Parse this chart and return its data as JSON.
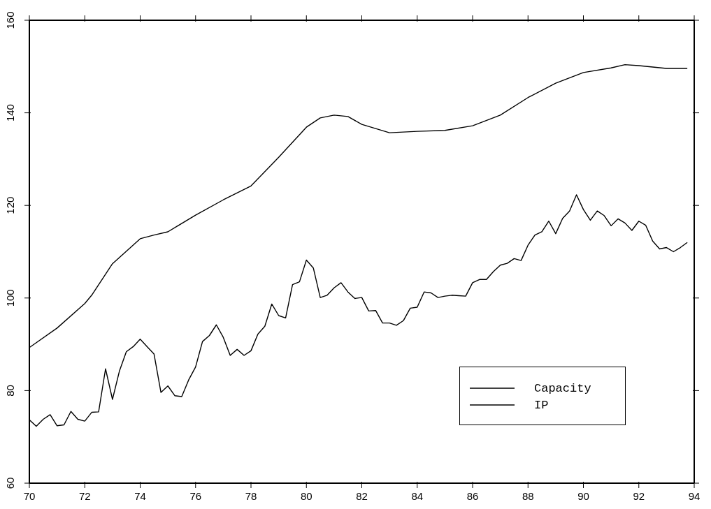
{
  "chart_data": {
    "type": "line",
    "xlim": [
      70,
      94
    ],
    "xticks": [
      70,
      72,
      74,
      76,
      78,
      80,
      82,
      84,
      86,
      88,
      90,
      92,
      94
    ],
    "ylim": [
      60,
      160
    ],
    "yticks": [
      60,
      80,
      100,
      120,
      140,
      160
    ],
    "grid": false,
    "legend": "bottom right",
    "marker": "none",
    "line_style": "solid",
    "series": [
      {
        "name": "Capacity",
        "color": "#000000",
        "x": [
          70,
          71,
          72,
          72.25,
          73,
          74,
          74.5,
          75,
          76,
          77,
          78,
          79,
          80,
          80.5,
          81,
          81.5,
          82,
          83,
          84,
          85,
          86,
          87,
          88,
          89,
          90,
          91,
          91.5,
          92,
          93,
          93.75
        ],
        "values": [
          89.3,
          93.5,
          98.8,
          100.6,
          107.4,
          112.8,
          113.6,
          114.3,
          117.9,
          121.2,
          124.2,
          130.4,
          136.9,
          138.9,
          139.5,
          139.2,
          137.5,
          135.7,
          136.0,
          136.2,
          137.2,
          139.5,
          143.3,
          146.4,
          148.7,
          149.7,
          150.4,
          150.2,
          149.6,
          149.6
        ]
      },
      {
        "name": "IP",
        "color": "#000000",
        "x": [
          70,
          70.25,
          70.5,
          70.75,
          71,
          71.25,
          71.5,
          71.75,
          72,
          72.25,
          72.5,
          72.75,
          73,
          73.25,
          73.5,
          73.75,
          74,
          74.25,
          74.5,
          74.75,
          75,
          75.25,
          75.5,
          75.75,
          76,
          76.25,
          76.5,
          76.75,
          77,
          77.25,
          77.5,
          77.75,
          78,
          78.25,
          78.5,
          78.75,
          79,
          79.25,
          79.5,
          79.75,
          80,
          80.25,
          80.5,
          80.75,
          81,
          81.25,
          81.5,
          81.75,
          82,
          82.25,
          82.5,
          82.75,
          83,
          83.25,
          83.5,
          83.75,
          84,
          84.25,
          84.5,
          84.75,
          85,
          85.25,
          85.5,
          85.75,
          86,
          86.25,
          86.5,
          86.75,
          87,
          87.25,
          87.5,
          87.75,
          88,
          88.25,
          88.5,
          88.75,
          89,
          89.25,
          89.5,
          89.75,
          90,
          90.25,
          90.5,
          90.75,
          91,
          91.25,
          91.5,
          91.75,
          92,
          92.25,
          92.5,
          92.75,
          93,
          93.25,
          93.5,
          93.75
        ],
        "values": [
          73.7,
          72.3,
          73.8,
          74.8,
          72.4,
          72.6,
          75.5,
          73.8,
          73.4,
          75.3,
          75.4,
          84.7,
          78.1,
          84.2,
          88.4,
          89.5,
          91.1,
          89.5,
          87.9,
          79.6,
          81.0,
          78.9,
          78.7,
          82.3,
          85.1,
          90.6,
          91.9,
          94.2,
          91.5,
          87.6,
          88.9,
          87.6,
          88.6,
          92.2,
          93.9,
          98.7,
          96.2,
          95.7,
          102.9,
          103.5,
          108.2,
          106.5,
          100.1,
          100.6,
          102.2,
          103.3,
          101.3,
          99.9,
          100.1,
          97.2,
          97.3,
          94.6,
          94.6,
          94.1,
          95.1,
          97.8,
          98.0,
          101.3,
          101.1,
          100.1,
          100.4,
          100.6,
          100.5,
          100.4,
          103.3,
          104.0,
          104.0,
          105.7,
          107.1,
          107.5,
          108.5,
          108.1,
          111.4,
          113.6,
          114.3,
          116.6,
          113.9,
          117.2,
          118.8,
          122.3,
          119.1,
          116.8,
          118.8,
          117.8,
          115.6,
          117.1,
          116.2,
          114.6,
          116.6,
          115.7,
          112.3,
          110.6,
          110.9,
          110.0,
          110.9,
          112.0
        ]
      }
    ]
  }
}
